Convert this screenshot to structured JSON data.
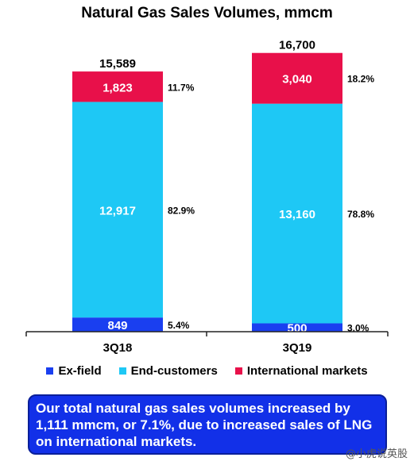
{
  "chart_data": {
    "type": "bar",
    "stacked": true,
    "title": "Natural Gas Sales Volumes, mmcm",
    "categories": [
      "3Q18",
      "3Q19"
    ],
    "totals": [
      "15,589",
      "16,700"
    ],
    "ylim": [
      0,
      17400
    ],
    "series": [
      {
        "name": "Ex-field",
        "color": "#1a3ff0",
        "values": [
          849,
          500
        ],
        "value_labels": [
          "849",
          "500"
        ],
        "share_labels": [
          "5.4%",
          "3.0%"
        ]
      },
      {
        "name": "End-customers",
        "color": "#1ec8f5",
        "values": [
          12917,
          13160
        ],
        "value_labels": [
          "12,917",
          "13,160"
        ],
        "share_labels": [
          "82.9%",
          "78.8%"
        ]
      },
      {
        "name": "International markets",
        "color": "#e8104a",
        "values": [
          1823,
          3040
        ],
        "value_labels": [
          "1,823",
          "3,040"
        ],
        "share_labels": [
          "11.7%",
          "18.2%"
        ]
      }
    ]
  },
  "callout": {
    "text": "Our total natural gas sales volumes increased by 1,111 mmcm, or 7.1%, due to increased sales of LNG on international markets."
  },
  "watermark": "@小虎说英股"
}
